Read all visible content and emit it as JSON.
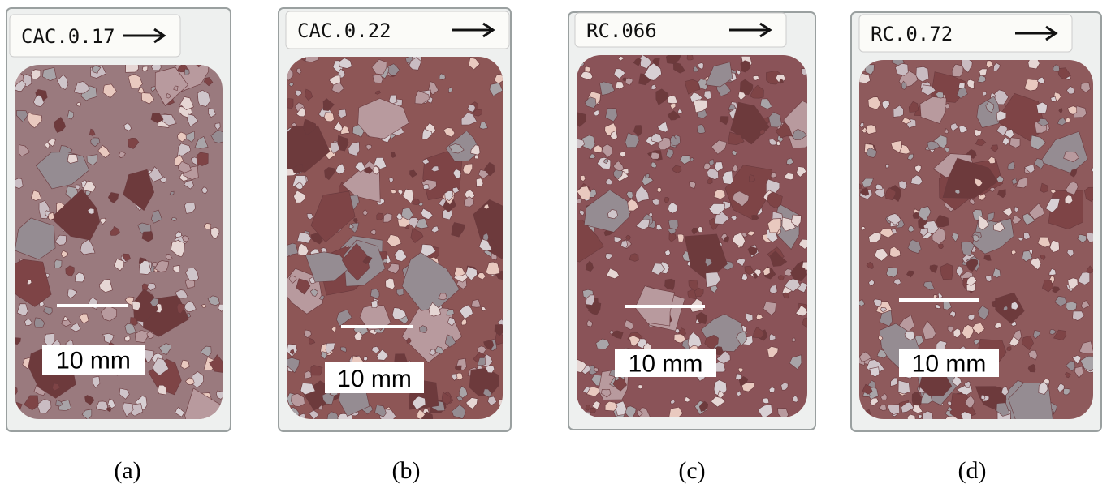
{
  "panels": [
    {
      "sample_label": "CAC.0.17",
      "scale_label": "10 mm",
      "caption": "(a)"
    },
    {
      "sample_label": "CAC.0.22",
      "scale_label": "10 mm",
      "caption": "(b)"
    },
    {
      "sample_label": "RC.066",
      "scale_label": "10 mm",
      "caption": "(c)"
    },
    {
      "sample_label": "RC.0.72",
      "scale_label": "10 mm",
      "caption": "(d)"
    }
  ]
}
